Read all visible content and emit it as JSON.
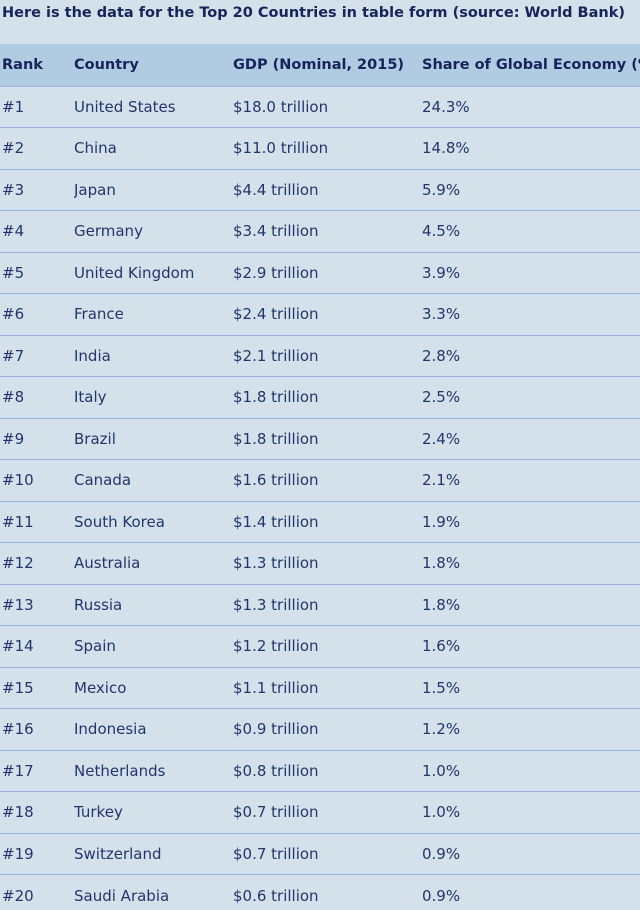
{
  "intro": "Here is the data for the Top 20 Countries in table form (source: World Bank)",
  "table": {
    "headers": [
      "Rank",
      "Country",
      "GDP (Nominal, 2015)",
      "Share of Global Economy (%)"
    ],
    "rows": [
      [
        "#1",
        "United States",
        "$18.0 trillion",
        "24.3%"
      ],
      [
        "#2",
        "China",
        "$11.0 trillion",
        "14.8%"
      ],
      [
        "#3",
        "Japan",
        "$4.4 trillion",
        "5.9%"
      ],
      [
        "#4",
        "Germany",
        "$3.4 trillion",
        "4.5%"
      ],
      [
        "#5",
        "United Kingdom",
        "$2.9 trillion",
        "3.9%"
      ],
      [
        "#6",
        "France",
        "$2.4 trillion",
        "3.3%"
      ],
      [
        "#7",
        "India",
        "$2.1 trillion",
        "2.8%"
      ],
      [
        "#8",
        "Italy",
        "$1.8 trillion",
        "2.5%"
      ],
      [
        "#9",
        "Brazil",
        "$1.8 trillion",
        "2.4%"
      ],
      [
        "#10",
        "Canada",
        "$1.6 trillion",
        "2.1%"
      ],
      [
        "#11",
        "South Korea",
        "$1.4 trillion",
        "1.9%"
      ],
      [
        "#12",
        "Australia",
        "$1.3 trillion",
        "1.8%"
      ],
      [
        "#13",
        "Russia",
        "$1.3 trillion",
        "1.8%"
      ],
      [
        "#14",
        "Spain",
        "$1.2 trillion",
        "1.6%"
      ],
      [
        "#15",
        "Mexico",
        "$1.1 trillion",
        "1.5%"
      ],
      [
        "#16",
        "Indonesia",
        "$0.9 trillion",
        "1.2%"
      ],
      [
        "#17",
        "Netherlands",
        "$0.8 trillion",
        "1.0%"
      ],
      [
        "#18",
        "Turkey",
        "$0.7 trillion",
        "1.0%"
      ],
      [
        "#19",
        "Switzerland",
        "$0.7 trillion",
        "0.9%"
      ],
      [
        "#20",
        "Saudi Arabia",
        "$0.6 trillion",
        "0.9%"
      ]
    ]
  }
}
